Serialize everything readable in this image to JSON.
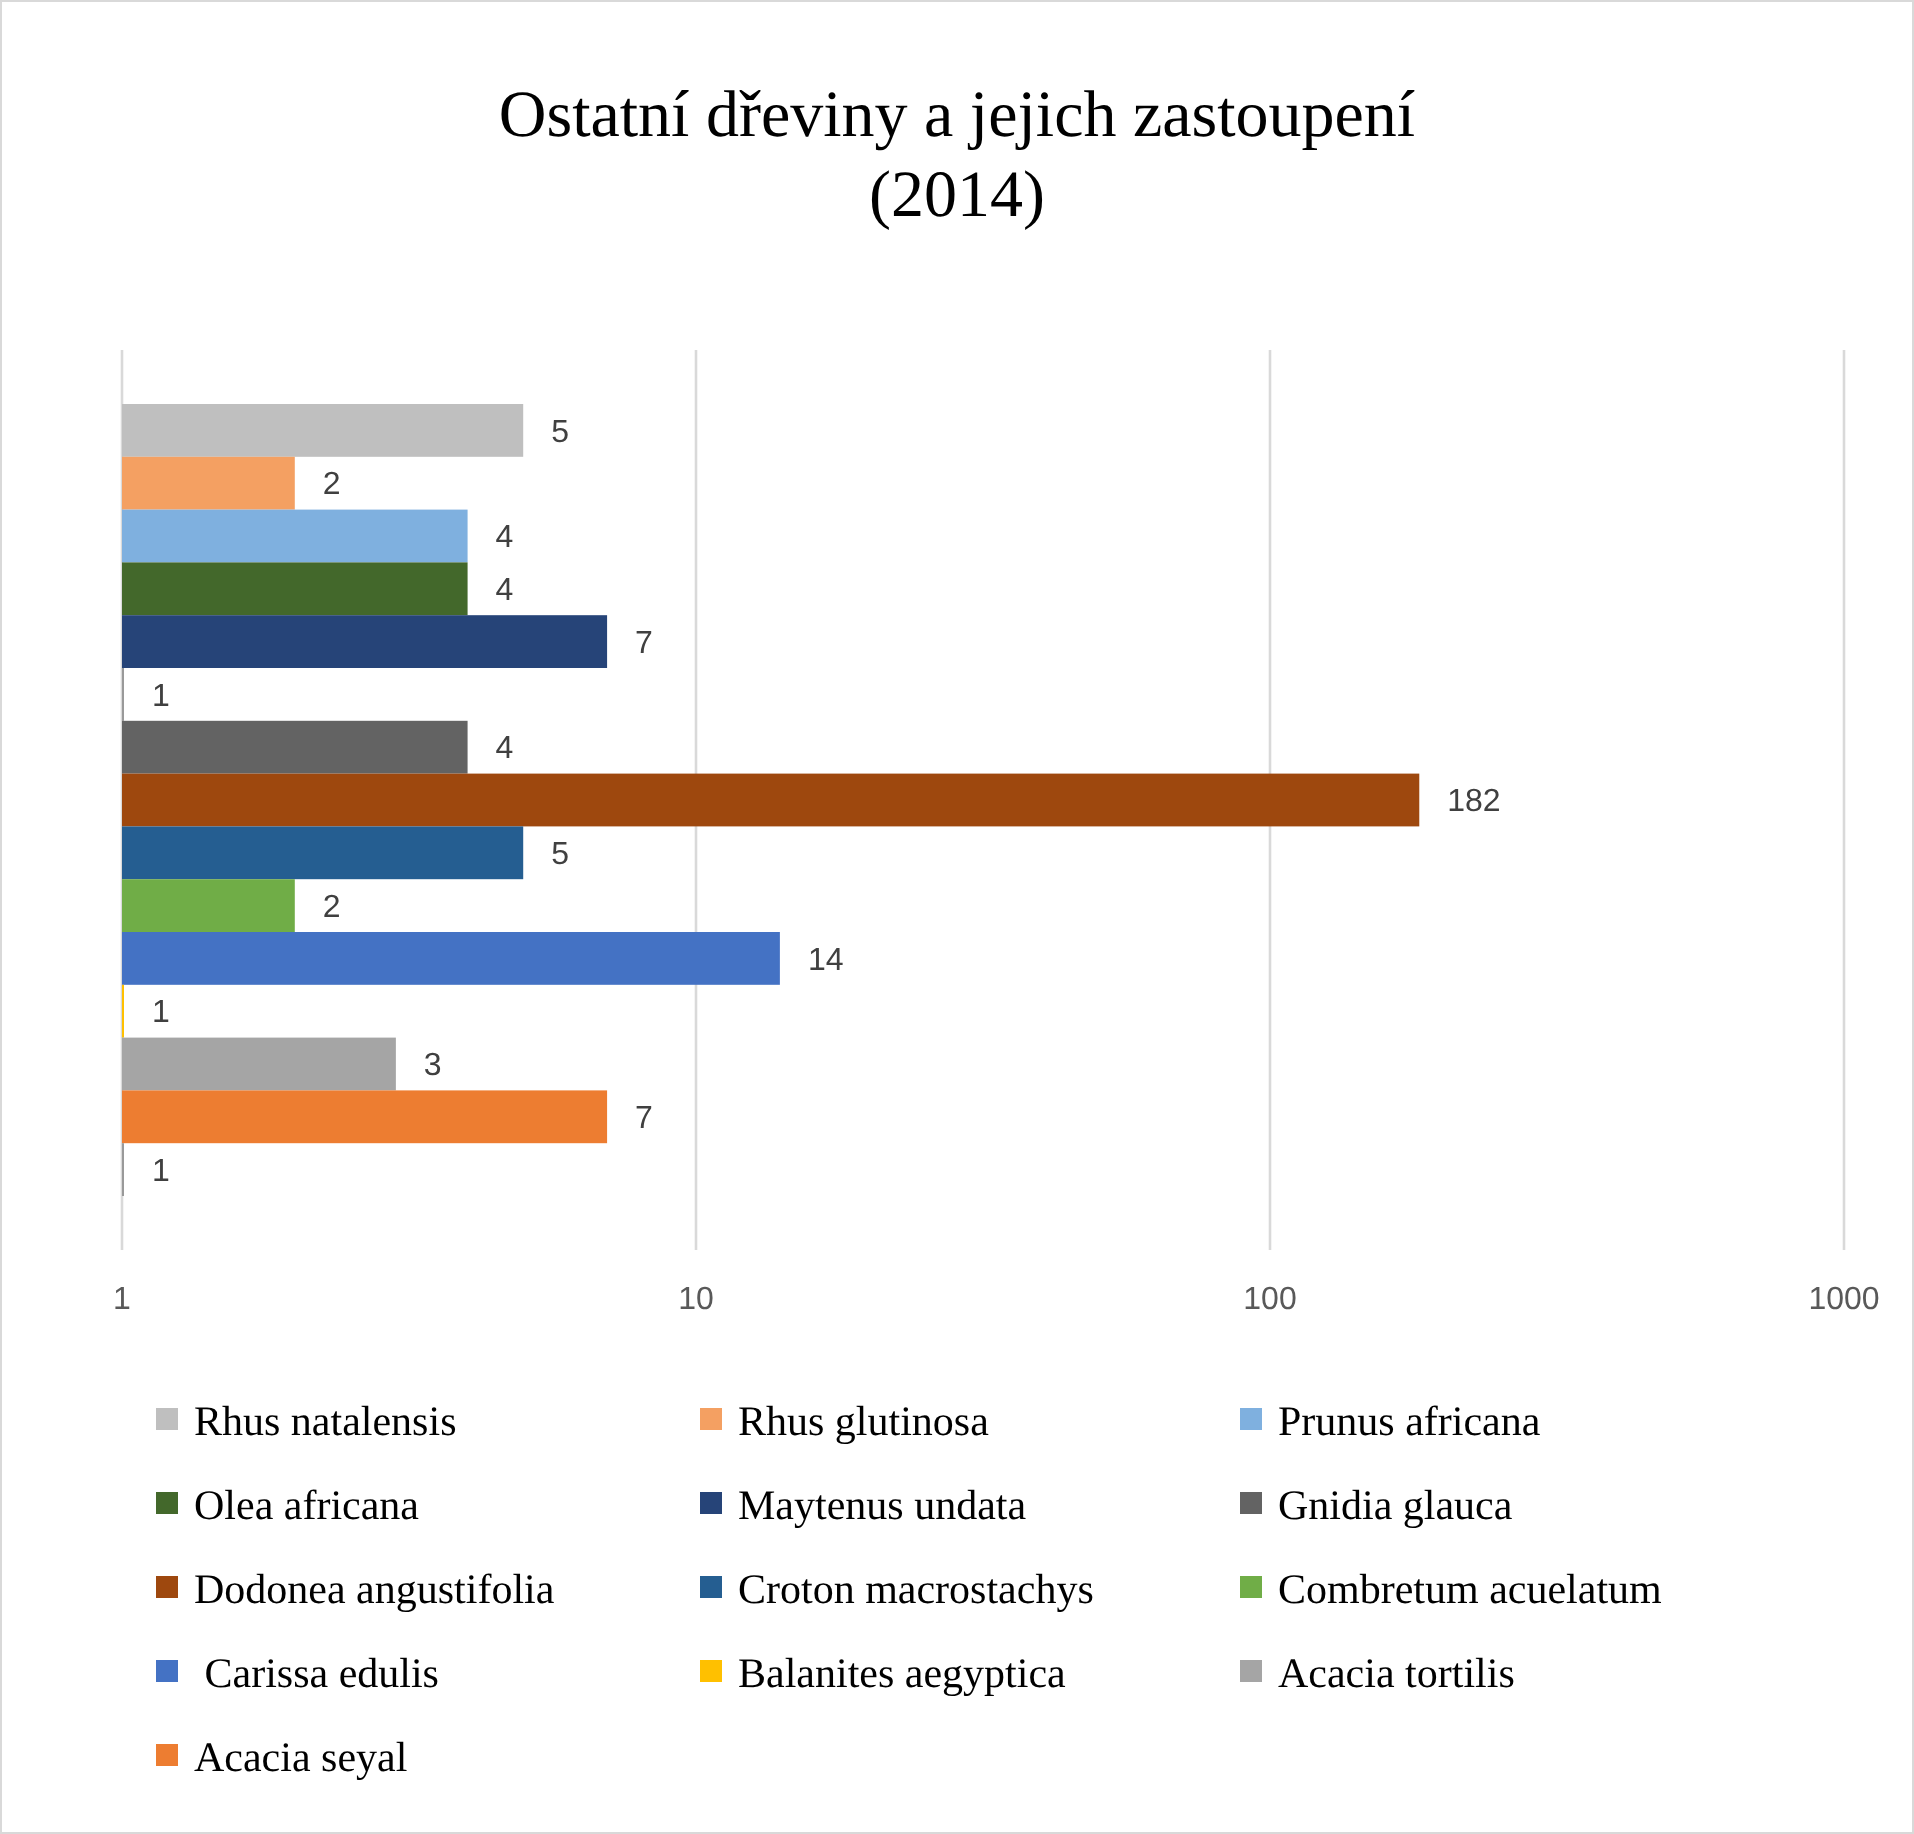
{
  "chart_data": {
    "type": "bar",
    "orientation": "horizontal",
    "title": "Ostatní dřeviny a jejich zastoupení\n(2014)",
    "categories": [
      null
    ],
    "log": "x",
    "xlim": [
      1,
      1000
    ],
    "xticks": [
      1,
      10,
      100,
      1000
    ],
    "grid": "x",
    "legend": "bottom",
    "tick_labels": "x",
    "data_labels": true,
    "series": [
      {
        "name": "Rhus natalensis",
        "color": "#bfbfbf",
        "values": [
          5
        ]
      },
      {
        "name": "Rhus glutinosa",
        "color": "#f4a062",
        "values": [
          2
        ]
      },
      {
        "name": "Prunus africana",
        "color": "#7fb0df",
        "values": [
          4
        ]
      },
      {
        "name": "Olea africana",
        "color": "#43682b",
        "values": [
          4
        ]
      },
      {
        "name": "Maytenus undata",
        "color": "#264478",
        "values": [
          7
        ]
      },
      {
        "values": [
          1
        ]
      },
      {
        "name": "Gnidia glauca",
        "color": "#636363",
        "values": [
          4
        ]
      },
      {
        "name": "Dodonea angustifolia",
        "color": "#9e480e",
        "values": [
          182
        ]
      },
      {
        "name": "Croton macrostachys",
        "color": "#255e91",
        "values": [
          5
        ]
      },
      {
        "name": "Combretum acuelatum",
        "color": "#70ad47",
        "values": [
          2
        ]
      },
      {
        "name": " Carissa edulis",
        "color": "#4472c4",
        "values": [
          14
        ]
      },
      {
        "name": "Balanites aegyptica",
        "color": "#ffc000",
        "values": [
          1
        ]
      },
      {
        "name": "Acacia tortilis",
        "color": "#a5a5a5",
        "values": [
          3
        ]
      },
      {
        "name": "Acacia seyal",
        "color": "#ed7d31",
        "values": [
          7
        ]
      },
      {
        "values": [
          1
        ]
      }
    ]
  }
}
